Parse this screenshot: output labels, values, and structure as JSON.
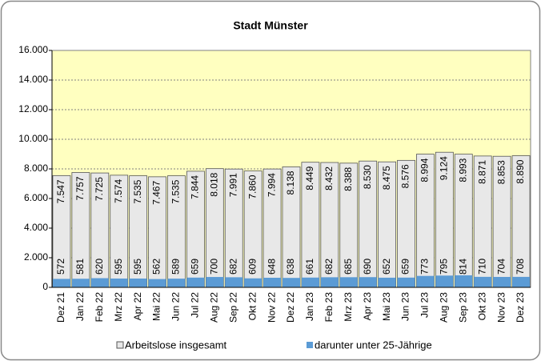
{
  "chart_data": {
    "type": "bar",
    "title": "Stadt Münster",
    "categories": [
      "Dez 21",
      "Jan 22",
      "Feb 22",
      "Mrz 22",
      "Apr 22",
      "Mai 22",
      "Jun 22",
      "Jul 22",
      "Aug 22",
      "Sep 22",
      "Okt 22",
      "Nov 22",
      "Dez 22",
      "Jan 23",
      "Feb 23",
      "Mrz 23",
      "Apr 23",
      "Mai 23",
      "Jun 23",
      "Jul 23",
      "Aug 23",
      "Sep 23",
      "Okt 23",
      "Nov 23",
      "Dez 23"
    ],
    "series": [
      {
        "name": "Arbeitslose insgesamt",
        "color": "#e8e8e8",
        "values": [
          7547,
          7757,
          7725,
          7574,
          7535,
          7467,
          7535,
          7844,
          8018,
          7991,
          7860,
          7994,
          8138,
          8449,
          8432,
          8388,
          8530,
          8475,
          8576,
          8994,
          9124,
          8993,
          8871,
          8853,
          8890
        ],
        "value_labels": [
          "7.547",
          "7.757",
          "7.725",
          "7.574",
          "7.535",
          "7.467",
          "7.535",
          "7.844",
          "8.018",
          "7.991",
          "7.860",
          "7.994",
          "8.138",
          "8.449",
          "8.432",
          "8.388",
          "8.530",
          "8.475",
          "8.576",
          "8.994",
          "9.124",
          "8.993",
          "8.871",
          "8.853",
          "8.890"
        ]
      },
      {
        "name": "darunter unter 25-Jährige",
        "color": "#5b9bd5",
        "values": [
          572,
          581,
          620,
          595,
          595,
          562,
          589,
          659,
          700,
          682,
          609,
          648,
          638,
          661,
          682,
          685,
          690,
          652,
          659,
          773,
          795,
          814,
          710,
          704,
          708
        ]
      }
    ],
    "ylim": [
      0,
      16000
    ],
    "yticks": [
      0,
      {
        "value": 2000,
        "label": "2.000"
      },
      {
        "value": 4000,
        "label": "4.000"
      },
      {
        "value": 6000,
        "label": "6.000"
      },
      {
        "value": 8000,
        "label": "8.000"
      },
      {
        "value": 10000,
        "label": "10.000"
      },
      {
        "value": 12000,
        "label": "12.000"
      },
      {
        "value": 14000,
        "label": "14.000"
      },
      {
        "value": 16000,
        "label": "16.000"
      }
    ],
    "grid": true
  }
}
